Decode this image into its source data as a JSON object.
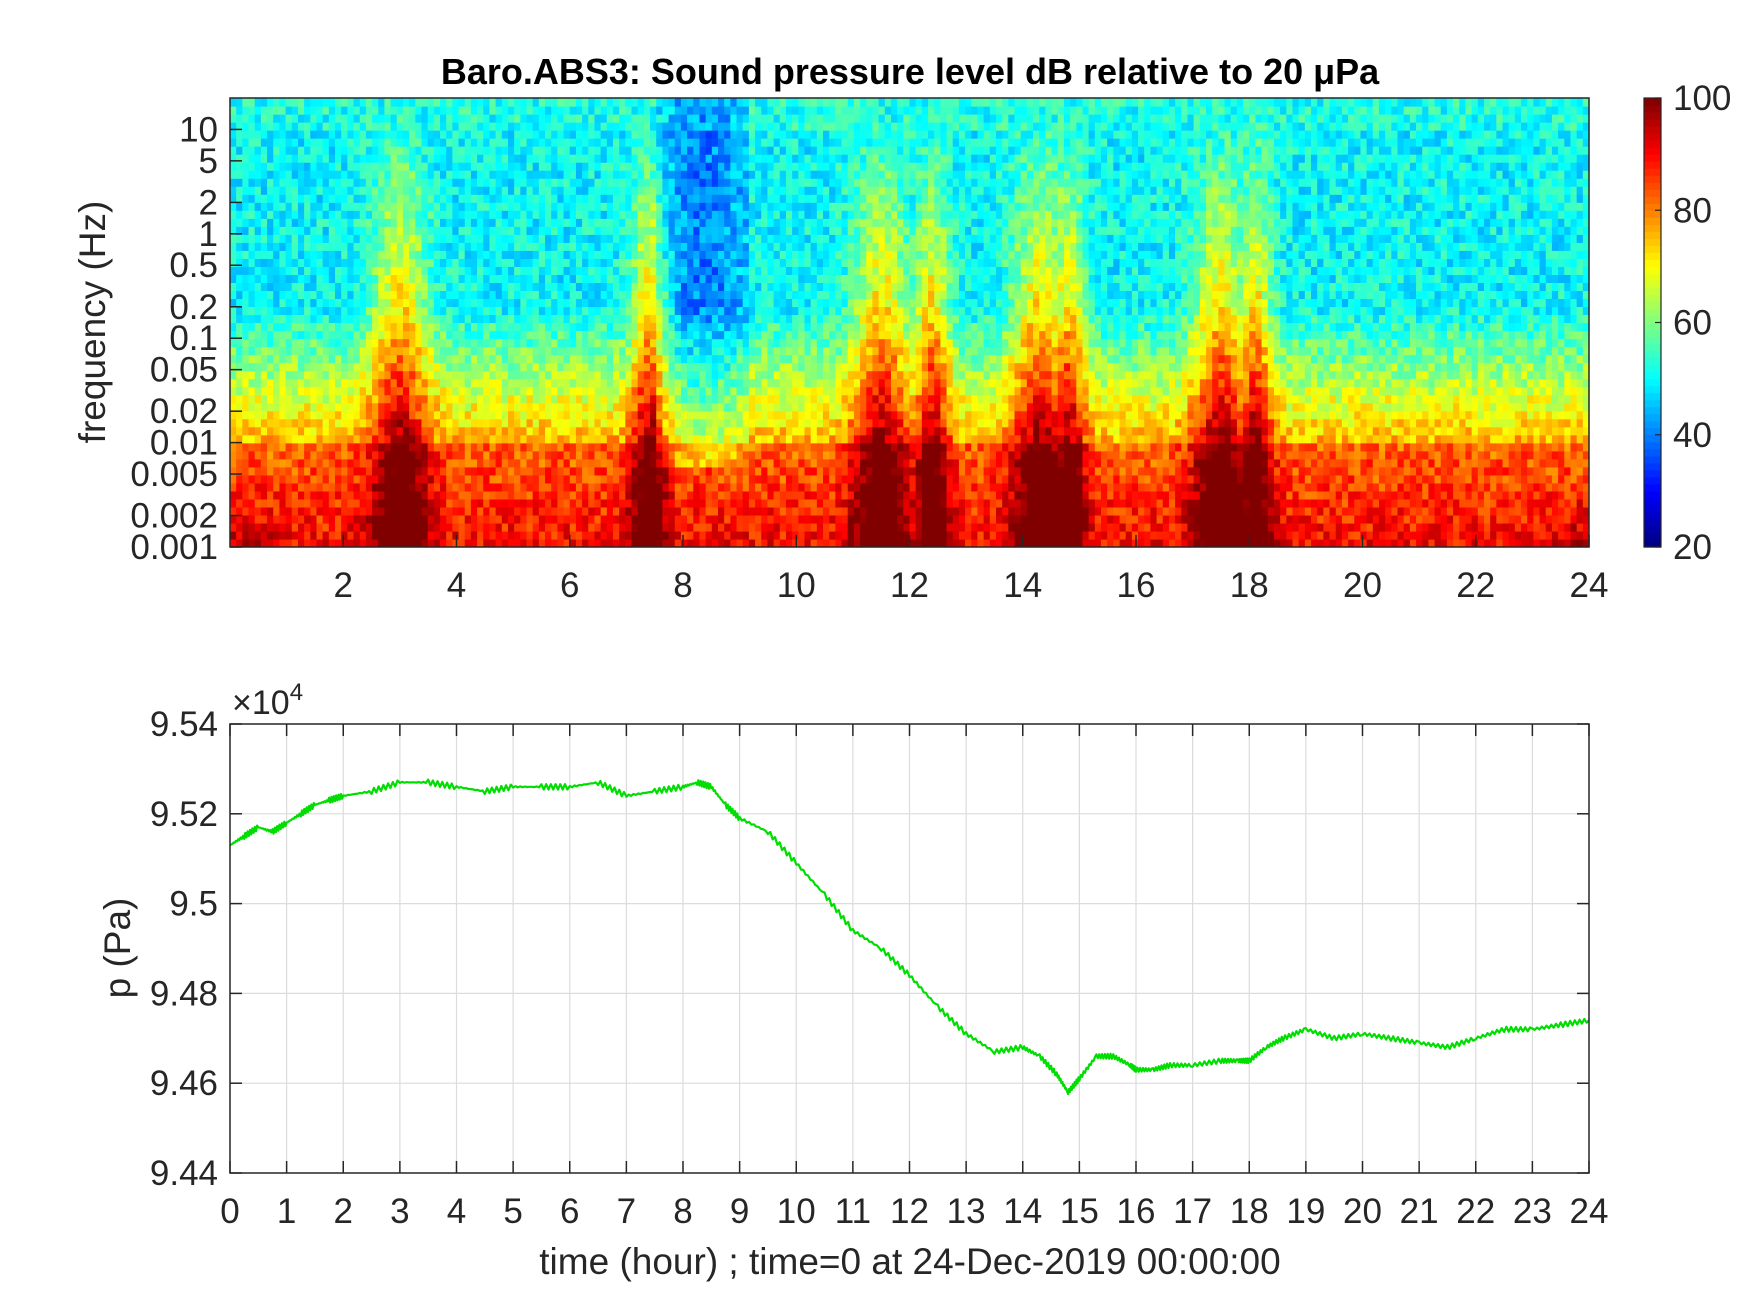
{
  "chart_data": [
    {
      "type": "heatmap",
      "title": "Baro.ABS3: Sound pressure level dB relative to 20 μPa",
      "xlabel": "",
      "ylabel": "frequency (Hz)",
      "xlim": [
        0,
        24
      ],
      "ylim": [
        0.001,
        20
      ],
      "y_scale": "log",
      "x_ticks": [
        2,
        4,
        6,
        8,
        10,
        12,
        14,
        16,
        18,
        20,
        22,
        24
      ],
      "y_ticks": [
        {
          "value": 0.001,
          "label": "0.001"
        },
        {
          "value": 0.002,
          "label": "0.002"
        },
        {
          "value": 0.005,
          "label": "0.005"
        },
        {
          "value": 0.01,
          "label": "0.01"
        },
        {
          "value": 0.02,
          "label": "0.02"
        },
        {
          "value": 0.05,
          "label": "0.05"
        },
        {
          "value": 0.1,
          "label": "0.1"
        },
        {
          "value": 0.2,
          "label": "0.2"
        },
        {
          "value": 0.5,
          "label": "0.5"
        },
        {
          "value": 1,
          "label": "1"
        },
        {
          "value": 2,
          "label": "2"
        },
        {
          "value": 5,
          "label": "5"
        },
        {
          "value": 10,
          "label": "10"
        }
      ],
      "colorbar": {
        "range": [
          20,
          100
        ],
        "ticks": [
          20,
          40,
          60,
          80,
          100
        ],
        "colormap": "jet"
      },
      "features": {
        "above_10hz_level_db": 52,
        "band_0_2_to_10hz_level_db": 50,
        "below_0_01hz_level_db": 88,
        "events_hour": [
          3,
          7.4,
          11.5,
          12.4,
          14.3,
          14.8,
          17.5,
          18.1
        ],
        "quiet_interval_hour": [
          7.5,
          9.2
        ]
      }
    },
    {
      "type": "line",
      "title": "",
      "xlabel": "time (hour) ; time=0 at 24-Dec-2019 00:00:00",
      "ylabel": "p (Pa)",
      "y_multiplier": "×10",
      "y_multiplier_exp": "4",
      "xlim": [
        0,
        24
      ],
      "ylim": [
        9.44,
        9.54
      ],
      "x_ticks": [
        0,
        1,
        2,
        3,
        4,
        5,
        6,
        7,
        8,
        9,
        10,
        11,
        12,
        13,
        14,
        15,
        16,
        17,
        18,
        19,
        20,
        21,
        22,
        23,
        24
      ],
      "y_ticks": [
        {
          "value": 9.44,
          "label": "9.44"
        },
        {
          "value": 9.46,
          "label": "9.46"
        },
        {
          "value": 9.48,
          "label": "9.48"
        },
        {
          "value": 9.5,
          "label": "9.5"
        },
        {
          "value": 9.52,
          "label": "9.52"
        },
        {
          "value": 9.54,
          "label": "9.54"
        }
      ],
      "grid": true,
      "color": "#00dd00",
      "x": [
        0,
        0.25,
        0.5,
        0.75,
        1,
        1.25,
        1.5,
        1.75,
        2,
        2.5,
        3,
        3.5,
        4,
        4.5,
        5,
        5.5,
        6,
        6.5,
        7,
        7.5,
        8,
        8.25,
        8.5,
        8.75,
        9,
        9.5,
        10,
        10.5,
        11,
        11.5,
        12,
        12.5,
        13,
        13.5,
        14,
        14.3,
        14.6,
        14.8,
        15,
        15.3,
        15.6,
        15.9,
        16,
        16.3,
        16.6,
        17,
        17.5,
        17.8,
        18,
        18.3,
        18.6,
        19,
        19.5,
        20,
        20.5,
        21,
        21.5,
        22,
        22.5,
        23,
        23.5,
        24
      ],
      "y": [
        9.513,
        9.515,
        9.517,
        9.516,
        9.518,
        9.52,
        9.522,
        9.523,
        9.524,
        9.525,
        9.527,
        9.527,
        9.526,
        9.525,
        9.526,
        9.526,
        9.526,
        9.527,
        9.524,
        9.525,
        9.526,
        9.527,
        9.526,
        9.522,
        9.519,
        9.516,
        9.509,
        9.502,
        9.494,
        9.49,
        9.484,
        9.477,
        9.471,
        9.467,
        9.468,
        9.466,
        9.462,
        9.458,
        9.461,
        9.466,
        9.466,
        9.464,
        9.463,
        9.463,
        9.464,
        9.464,
        9.465,
        9.465,
        9.465,
        9.468,
        9.47,
        9.472,
        9.47,
        9.471,
        9.47,
        9.469,
        9.468,
        9.47,
        9.472,
        9.472,
        9.473,
        9.474
      ]
    }
  ]
}
